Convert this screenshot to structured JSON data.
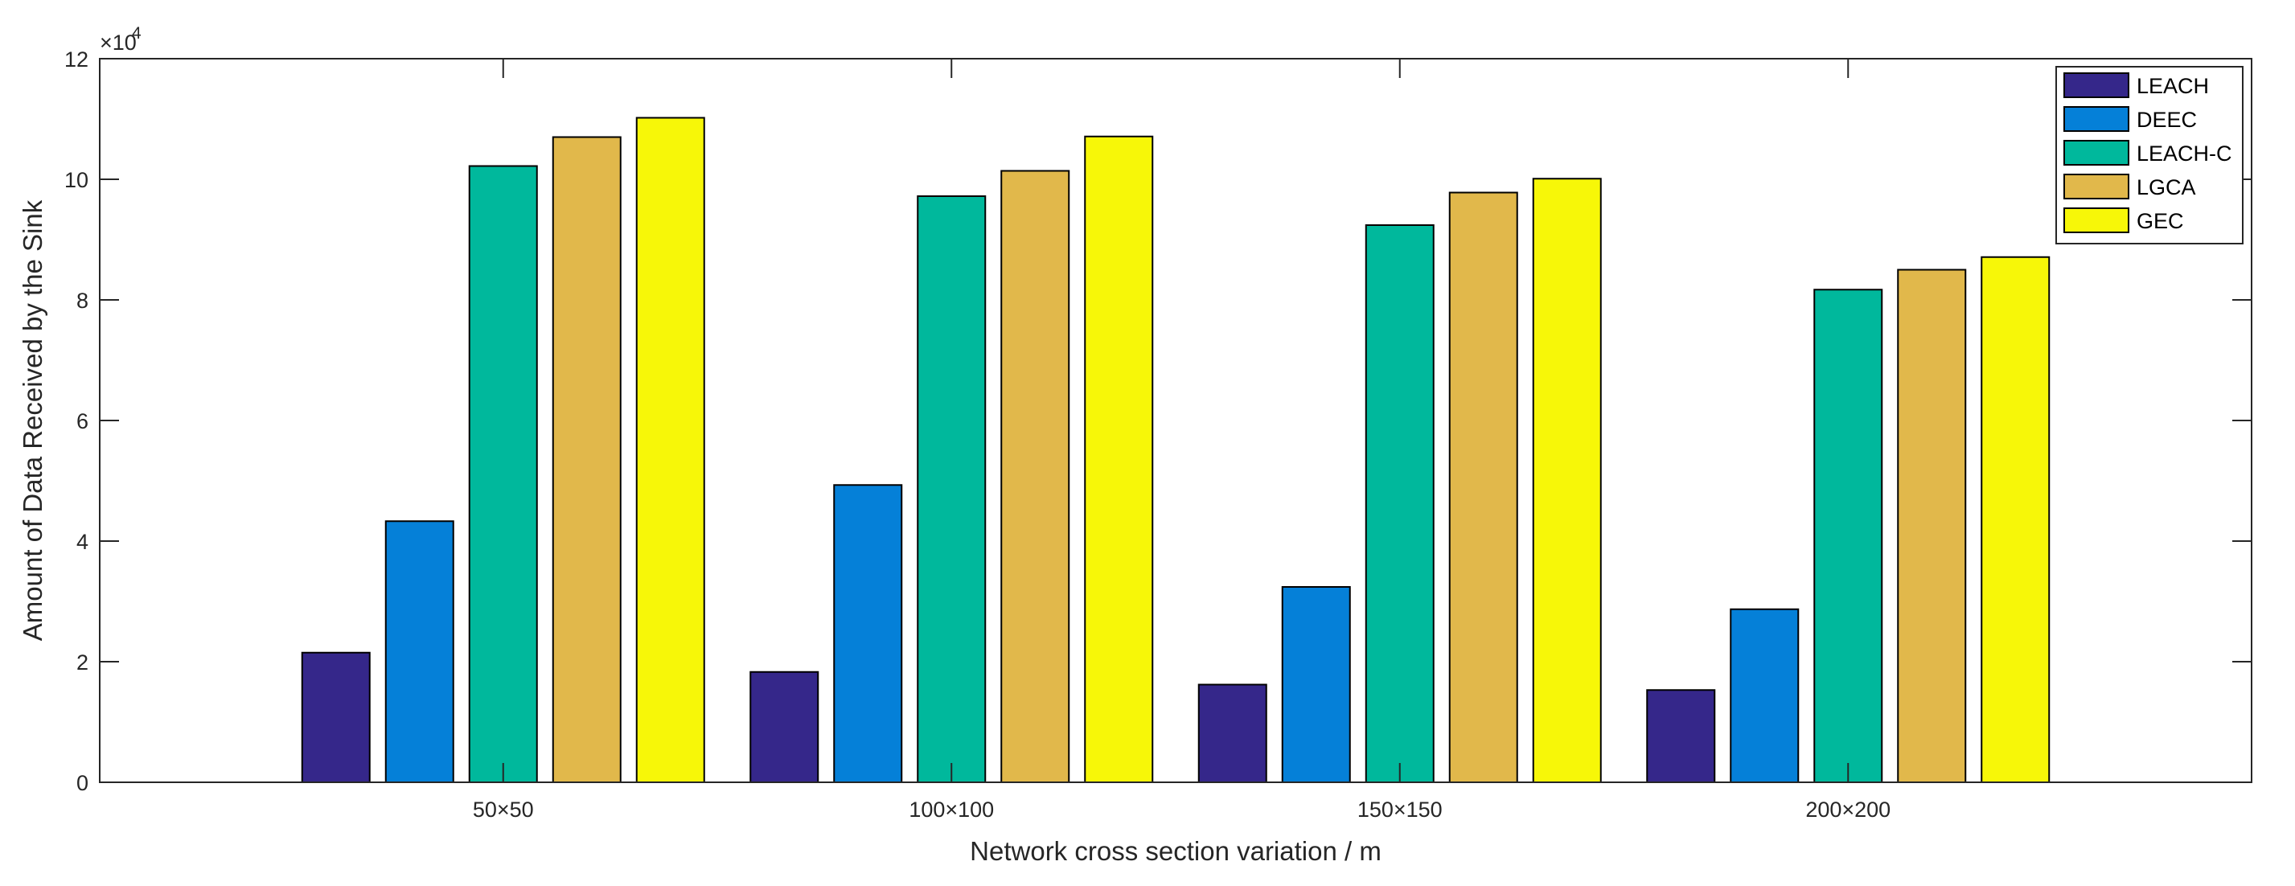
{
  "chart_data": {
    "type": "bar",
    "title": "",
    "xlabel": "Network cross section variation / m",
    "ylabel": "Amount of Data Received by the Sink",
    "exponent_label": "×10",
    "exponent_value": "4",
    "categories": [
      "50×50",
      "100×100",
      "150×150",
      "200×200"
    ],
    "ylim": [
      0,
      12
    ],
    "yticks": [
      "0",
      "2",
      "4",
      "6",
      "8",
      "10",
      "12"
    ],
    "ytick_values": [
      0,
      2,
      4,
      6,
      8,
      10,
      12
    ],
    "grid": false,
    "legend_position": "top-right",
    "series": [
      {
        "name": "LEACH",
        "color": "#35278a",
        "values": [
          2.15,
          1.83,
          1.62,
          1.53
        ]
      },
      {
        "name": "DEEC",
        "color": "#0580d8",
        "values": [
          4.33,
          4.93,
          3.24,
          2.87
        ]
      },
      {
        "name": "LEACH-C",
        "color": "#00b89c",
        "values": [
          10.22,
          9.72,
          9.24,
          8.17
        ]
      },
      {
        "name": "LGCA",
        "color": "#e1b84b",
        "values": [
          10.7,
          10.14,
          9.78,
          8.5
        ]
      },
      {
        "name": "GEC",
        "color": "#f7f708",
        "values": [
          11.02,
          10.71,
          10.01,
          8.71
        ]
      }
    ]
  }
}
